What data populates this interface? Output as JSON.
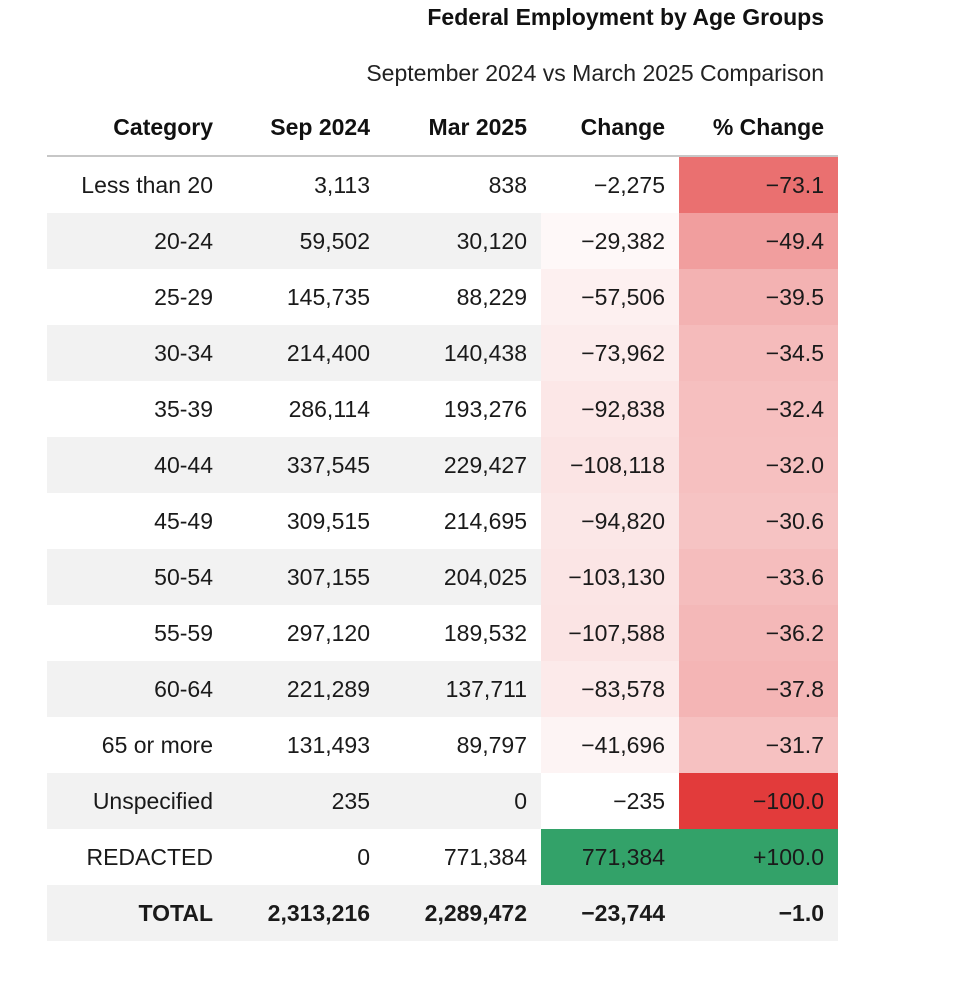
{
  "title": "Federal Employment by Age Groups",
  "subtitle": "September 2024 vs March 2025 Comparison",
  "colors": {
    "heat_red_full": "#e23b3b",
    "heat_green_full": "#33a269",
    "row_alt_gray": "#f2f2f2",
    "header_divider": "#c7c7c7",
    "text": "#1a1a1a"
  },
  "table": {
    "columns": [
      "Category",
      "Sep 2024",
      "Mar 2025",
      "Change",
      "% Change"
    ],
    "rows": [
      {
        "category": "Less than 20",
        "sep": "3,113",
        "mar": "838",
        "change": "−2,275",
        "pct": "−73.1",
        "change_bg": "#ffffff",
        "pct_bg": "#ea7070",
        "total": false
      },
      {
        "category": "20-24",
        "sep": "59,502",
        "mar": "30,120",
        "change": "−29,382",
        "pct": "−49.4",
        "change_bg": "#fef8f8",
        "pct_bg": "#f19e9e",
        "total": false
      },
      {
        "category": "25-29",
        "sep": "145,735",
        "mar": "88,229",
        "change": "−57,506",
        "pct": "−39.5",
        "change_bg": "#fdf0f0",
        "pct_bg": "#f3b2b2",
        "total": false
      },
      {
        "category": "30-34",
        "sep": "214,400",
        "mar": "140,438",
        "change": "−73,962",
        "pct": "−34.5",
        "change_bg": "#fcecec",
        "pct_bg": "#f5bbbb",
        "total": false
      },
      {
        "category": "35-39",
        "sep": "286,114",
        "mar": "193,276",
        "change": "−92,838",
        "pct": "−32.4",
        "change_bg": "#fce7e7",
        "pct_bg": "#f6bfbf",
        "total": false
      },
      {
        "category": "40-44",
        "sep": "337,545",
        "mar": "229,427",
        "change": "−108,118",
        "pct": "−32.0",
        "change_bg": "#fbe4e4",
        "pct_bg": "#f6c0c0",
        "total": false
      },
      {
        "category": "45-49",
        "sep": "309,515",
        "mar": "214,695",
        "change": "−94,820",
        "pct": "−30.6",
        "change_bg": "#fbe7e7",
        "pct_bg": "#f6c3c3",
        "total": false
      },
      {
        "category": "50-54",
        "sep": "307,155",
        "mar": "204,025",
        "change": "−103,130",
        "pct": "−33.6",
        "change_bg": "#fbe5e5",
        "pct_bg": "#f5bdbd",
        "total": false
      },
      {
        "category": "55-59",
        "sep": "297,120",
        "mar": "189,532",
        "change": "−107,588",
        "pct": "−36.2",
        "change_bg": "#fbe4e4",
        "pct_bg": "#f4b8b8",
        "total": false
      },
      {
        "category": "60-64",
        "sep": "221,289",
        "mar": "137,711",
        "change": "−83,578",
        "pct": "−37.8",
        "change_bg": "#fceaea",
        "pct_bg": "#f4b5b5",
        "total": false
      },
      {
        "category": "65 or more",
        "sep": "131,493",
        "mar": "89,797",
        "change": "−41,696",
        "pct": "−31.7",
        "change_bg": "#fdf4f4",
        "pct_bg": "#f6c1c1",
        "total": false
      },
      {
        "category": "Unspecified",
        "sep": "235",
        "mar": "0",
        "change": "−235",
        "pct": "−100.0",
        "change_bg": "#ffffff",
        "pct_bg": "#e23b3b",
        "total": false
      },
      {
        "category": "REDACTED",
        "sep": "0",
        "mar": "771,384",
        "change": "771,384",
        "pct": "+100.0",
        "change_bg": "#33a269",
        "pct_bg": "#33a269",
        "total": false
      },
      {
        "category": "TOTAL",
        "sep": "2,313,216",
        "mar": "2,289,472",
        "change": "−23,744",
        "pct": "−1.0",
        "change_bg": "",
        "pct_bg": "",
        "total": true
      }
    ]
  },
  "chart_data": {
    "type": "table",
    "title": "Federal Employment by Age Groups",
    "subtitle": "September 2024 vs March 2025 Comparison",
    "columns": [
      "Category",
      "Sep 2024",
      "Mar 2025",
      "Change",
      "% Change"
    ],
    "categories": [
      "Less than 20",
      "20-24",
      "25-29",
      "30-34",
      "35-39",
      "40-44",
      "45-49",
      "50-54",
      "55-59",
      "60-64",
      "65 or more",
      "Unspecified",
      "REDACTED",
      "TOTAL"
    ],
    "series": [
      {
        "name": "Sep 2024",
        "values": [
          3113,
          59502,
          145735,
          214400,
          286114,
          337545,
          309515,
          307155,
          297120,
          221289,
          131493,
          235,
          0,
          2313216
        ]
      },
      {
        "name": "Mar 2025",
        "values": [
          838,
          30120,
          88229,
          140438,
          193276,
          229427,
          214695,
          204025,
          189532,
          137711,
          89797,
          0,
          771384,
          2289472
        ]
      },
      {
        "name": "Change",
        "values": [
          -2275,
          -29382,
          -57506,
          -73962,
          -92838,
          -108118,
          -94820,
          -103130,
          -107588,
          -83578,
          -41696,
          -235,
          771384,
          -23744
        ]
      },
      {
        "name": "% Change",
        "values": [
          -73.1,
          -49.4,
          -39.5,
          -34.5,
          -32.4,
          -32.0,
          -30.6,
          -33.6,
          -36.2,
          -37.8,
          -31.7,
          -100.0,
          100.0,
          -1.0
        ]
      }
    ],
    "layout_hints": {
      "heatmap": "Change and % Change cells shaded white→red by negative magnitude, solid green for +100% row; TOTAL row unshaded gray",
      "alignment": "all columns right-aligned",
      "zebra_striping": true
    }
  }
}
